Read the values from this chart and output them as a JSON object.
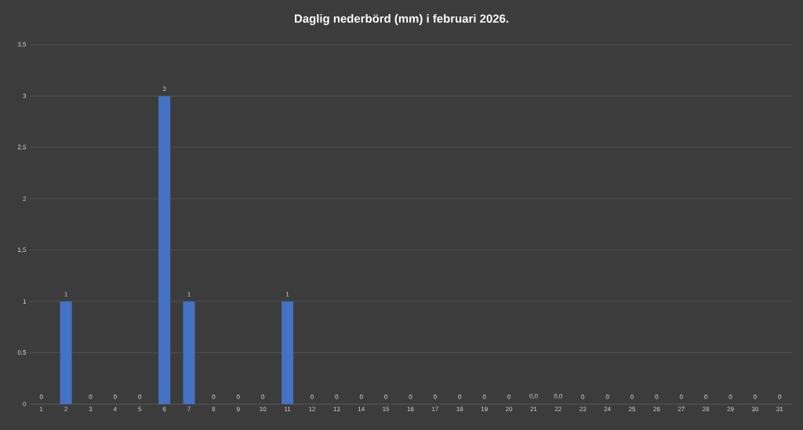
{
  "chart_data": {
    "type": "bar",
    "title": "Daglig nederbörd (mm) i februari 2026.",
    "categories": [
      "1",
      "2",
      "3",
      "4",
      "5",
      "6",
      "7",
      "8",
      "9",
      "10",
      "11",
      "12",
      "13",
      "14",
      "15",
      "16",
      "17",
      "18",
      "19",
      "20",
      "21",
      "22",
      "23",
      "24",
      "25",
      "26",
      "27",
      "28",
      "29",
      "30",
      "31"
    ],
    "values": [
      0,
      1,
      0,
      0,
      0,
      3,
      1,
      0,
      0,
      0,
      1,
      0,
      0,
      0,
      0,
      0,
      0,
      0,
      0,
      0,
      0,
      0,
      0,
      0,
      0,
      0,
      0,
      0,
      0,
      0,
      0
    ],
    "value_labels": [
      "0",
      "1",
      "0",
      "0",
      "0",
      "3",
      "1",
      "0",
      "0",
      "0",
      "1",
      "0",
      "0",
      "0",
      "0",
      "0",
      "0",
      "0",
      "0",
      "0",
      "0,0",
      "0,0",
      "0",
      "0",
      "0",
      "0",
      "0",
      "0",
      "0",
      "0",
      "0"
    ],
    "color": "#4472c4",
    "ylim": [
      0,
      3.5
    ],
    "yticks": [
      0,
      {
        "value": 0.5,
        "label": "0,5"
      },
      1,
      {
        "value": 1.5,
        "label": "1,5"
      },
      2,
      {
        "value": 2.5,
        "label": "2,5"
      },
      3,
      {
        "value": 3.5,
        "label": "3,5"
      }
    ],
    "grid": "y"
  }
}
